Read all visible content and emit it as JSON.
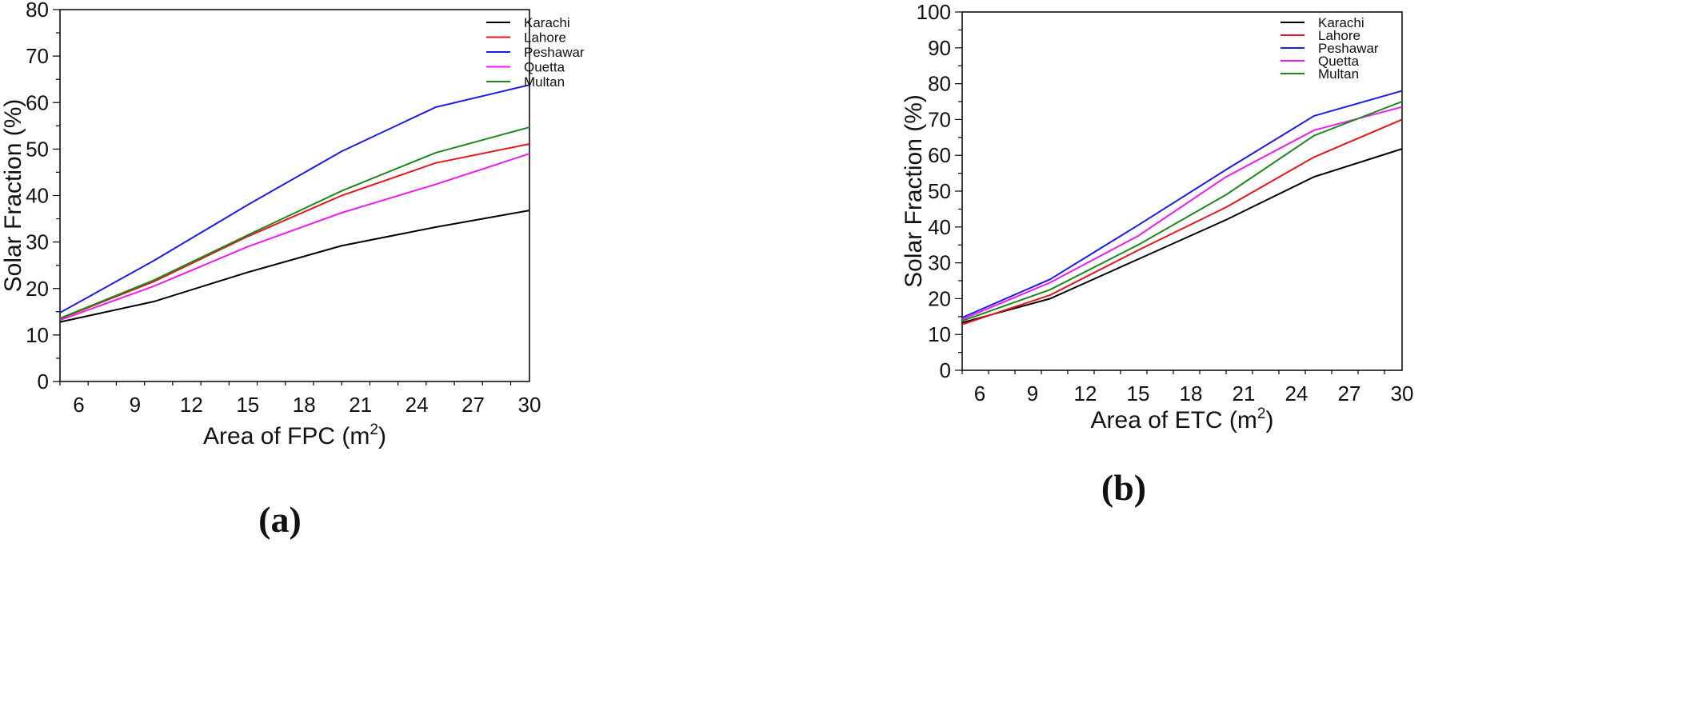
{
  "chart_data": [
    {
      "id": "a",
      "type": "line",
      "panel_label": "(a)",
      "xlabel": "Area of FPC (m",
      "xlabel_sup": "2",
      "xlabel_end": ")",
      "ylabel": "Solar Fraction (%)",
      "xlim": [
        5,
        30
      ],
      "ylim": [
        0,
        80
      ],
      "xticks": [
        6,
        9,
        12,
        15,
        18,
        21,
        24,
        27,
        30
      ],
      "yticks": [
        0,
        10,
        20,
        30,
        40,
        50,
        60,
        70,
        80
      ],
      "legend_position": "top-right",
      "grid": false,
      "x": [
        5,
        10,
        15,
        20,
        25,
        30
      ],
      "series": [
        {
          "name": "Karachi",
          "color": "#000000",
          "values": [
            12.8,
            17.2,
            23.5,
            29.2,
            33.2,
            36.8
          ]
        },
        {
          "name": "Lahore",
          "color": "#e8141b",
          "values": [
            13.5,
            21.5,
            31.2,
            40.0,
            47.0,
            51.1
          ]
        },
        {
          "name": "Peshawar",
          "color": "#1b1bf0",
          "values": [
            14.8,
            26.0,
            38.0,
            49.5,
            59.0,
            63.8
          ]
        },
        {
          "name": "Quetta",
          "color": "#f01af0",
          "values": [
            13.2,
            20.5,
            29.0,
            36.3,
            42.4,
            49.0
          ]
        },
        {
          "name": "Multan",
          "color": "#1a8a1a",
          "values": [
            13.6,
            21.8,
            31.5,
            41.0,
            49.2,
            54.7
          ]
        }
      ]
    },
    {
      "id": "b",
      "type": "line",
      "panel_label": "(b)",
      "xlabel": "Area of ETC (m",
      "xlabel_sup": "2",
      "xlabel_end": ")",
      "ylabel": "Solar Fraction (%)",
      "xlim": [
        5,
        30
      ],
      "ylim": [
        0,
        100
      ],
      "xticks": [
        6,
        9,
        12,
        15,
        18,
        21,
        24,
        27,
        30
      ],
      "yticks": [
        0,
        10,
        20,
        30,
        40,
        50,
        60,
        70,
        80,
        90,
        100
      ],
      "legend_position": "top-right",
      "grid": false,
      "x": [
        5,
        10,
        15,
        20,
        25,
        30
      ],
      "series": [
        {
          "name": "Karachi",
          "color": "#000000",
          "values": [
            13.3,
            20.0,
            31.0,
            42.0,
            54.0,
            61.8
          ]
        },
        {
          "name": "Lahore",
          "color": "#e8141b",
          "values": [
            12.8,
            21.0,
            33.5,
            45.5,
            59.5,
            70.0
          ]
        },
        {
          "name": "Peshawar",
          "color": "#1b1bf0",
          "values": [
            14.7,
            25.4,
            40.5,
            56.0,
            71.0,
            78.0
          ]
        },
        {
          "name": "Quetta",
          "color": "#f01af0",
          "values": [
            14.2,
            24.5,
            37.5,
            54.0,
            67.0,
            73.5
          ]
        },
        {
          "name": "Multan",
          "color": "#1a8a1a",
          "values": [
            13.8,
            22.5,
            35.0,
            49.0,
            65.5,
            75.0
          ]
        }
      ]
    }
  ]
}
